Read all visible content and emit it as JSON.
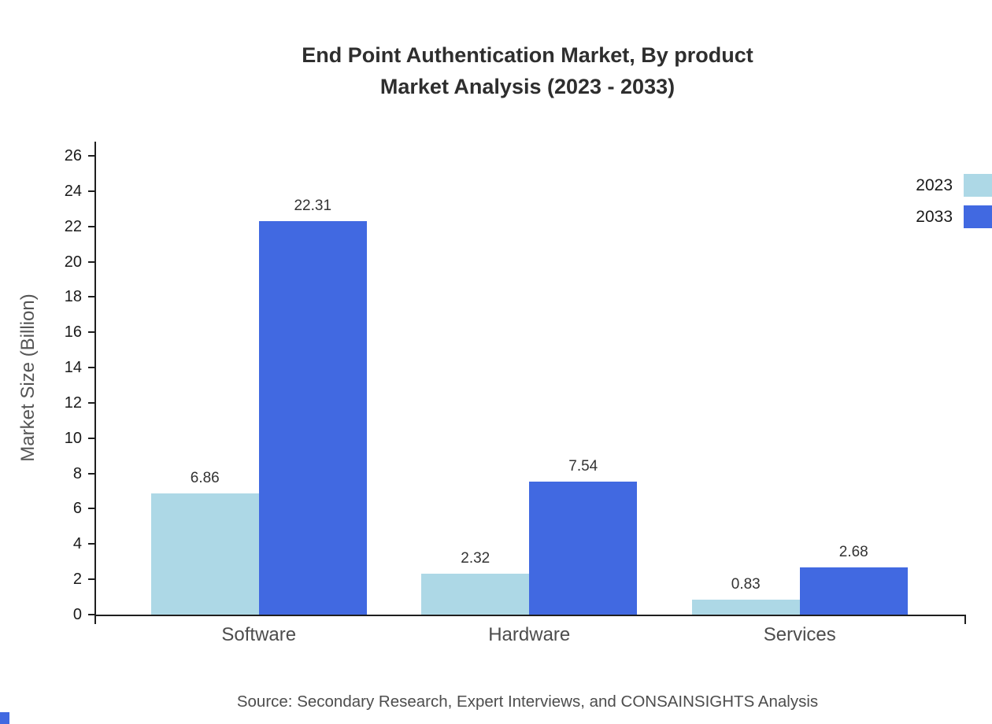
{
  "title": {
    "line1": "End Point Authentication Market, By product",
    "line2": "Market Analysis (2023 - 2033)"
  },
  "source": "Source: Secondary Research, Expert Interviews, and CONSAINSIGHTS Analysis",
  "colors": {
    "series_2023": "#add8e6",
    "series_2033": "#4169e1",
    "axis": "#1f1f1f"
  },
  "chart_data": {
    "type": "bar",
    "title": "End Point Authentication Market, By product Market Analysis (2023 - 2033)",
    "categories": [
      "Software",
      "Hardware",
      "Services"
    ],
    "series": [
      {
        "name": "2023",
        "color": "#add8e6",
        "values": [
          6.86,
          2.32,
          0.83
        ]
      },
      {
        "name": "2033",
        "color": "#4169e1",
        "values": [
          22.31,
          7.54,
          2.68
        ]
      }
    ],
    "xlabel": "",
    "ylabel": "Market Size (Billion)",
    "ylim": [
      0,
      26
    ],
    "ytick_step": 2,
    "yticks": [
      0,
      2,
      4,
      6,
      8,
      10,
      12,
      14,
      16,
      18,
      20,
      22,
      24,
      26
    ],
    "grid": false,
    "legend_position": "top-right",
    "value_labels": true
  }
}
